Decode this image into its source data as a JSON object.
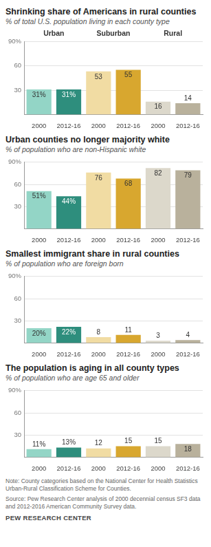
{
  "chart_data": [
    {
      "type": "bar",
      "title": "Shrinking share of Americans in rural counties",
      "subtitle": "% of total U.S. population living in each county type",
      "groups": [
        "Urban",
        "Suburban",
        "Rural"
      ],
      "categories": [
        "2000",
        "2012-16",
        "2000",
        "2012-16",
        "2000",
        "2012-16"
      ],
      "values": [
        31,
        31,
        53,
        55,
        16,
        14
      ],
      "value_labels": [
        "31%",
        "31%",
        "53",
        "55",
        "16",
        "14"
      ],
      "colors": [
        "#93d5c6",
        "#2e8e7d",
        "#f1dca3",
        "#d8a72f",
        "#dcd8cb",
        "#b9b19c"
      ],
      "ylim": [
        0,
        90
      ],
      "yticks": [
        30,
        60,
        {
          "value": 90,
          "label": "90%"
        }
      ],
      "grid": true,
      "data_labels": true
    },
    {
      "type": "bar",
      "title": "Urban counties no longer majority white",
      "subtitle": "% of population who are non-Hispanic white",
      "categories": [
        "2000",
        "2012-16",
        "2000",
        "2012-16",
        "2000",
        "2012-16"
      ],
      "values": [
        51,
        44,
        76,
        68,
        82,
        79
      ],
      "value_labels": [
        "51%",
        "44%",
        "76",
        "68",
        "82",
        "79"
      ],
      "colors": [
        "#93d5c6",
        "#2e8e7d",
        "#f1dca3",
        "#d8a72f",
        "#dcd8cb",
        "#b9b19c"
      ],
      "ylim": [
        0,
        90
      ],
      "yticks": [
        30,
        60,
        {
          "value": 90,
          "label": "90%"
        }
      ],
      "grid": true,
      "data_labels": true
    },
    {
      "type": "bar",
      "title": "Smallest immigrant share in rural counties",
      "subtitle": "% of population who are foreign born",
      "categories": [
        "2000",
        "2012-16",
        "2000",
        "2012-16",
        "2000",
        "2012-16"
      ],
      "values": [
        20,
        22,
        8,
        11,
        3,
        4
      ],
      "value_labels": [
        "20%",
        "22%",
        "8",
        "11",
        "3",
        "4"
      ],
      "colors": [
        "#93d5c6",
        "#2e8e7d",
        "#f1dca3",
        "#d8a72f",
        "#dcd8cb",
        "#b9b19c"
      ],
      "ylim": [
        0,
        90
      ],
      "yticks": [
        30,
        60,
        {
          "value": 90,
          "label": "90%"
        }
      ],
      "grid": true,
      "data_labels": true
    },
    {
      "type": "bar",
      "title": "The population is aging in all county types",
      "subtitle": "% of population who are age 65 and older",
      "categories": [
        "2000",
        "2012-16",
        "2000",
        "2012-16",
        "2000",
        "2012-16"
      ],
      "values": [
        11,
        13,
        12,
        15,
        15,
        18
      ],
      "value_labels": [
        "11%",
        "13%",
        "12",
        "15",
        "15",
        "18"
      ],
      "colors": [
        "#93d5c6",
        "#2e8e7d",
        "#f1dca3",
        "#d8a72f",
        "#dcd8cb",
        "#b9b19c"
      ],
      "ylim": [
        0,
        90
      ],
      "yticks": [
        30,
        60,
        {
          "value": 90,
          "label": "90%"
        }
      ],
      "grid": true,
      "data_labels": true
    }
  ],
  "notes": [
    "Note: County categories based on the National Center for Health Statistics Urban-Rural Classification Scheme for Counties.",
    "Source: Pew Research Center analysis of 2000 decennial census SF3 data and 2012-2016 American Community Survey data."
  ],
  "credit": "PEW RESEARCH CENTER"
}
